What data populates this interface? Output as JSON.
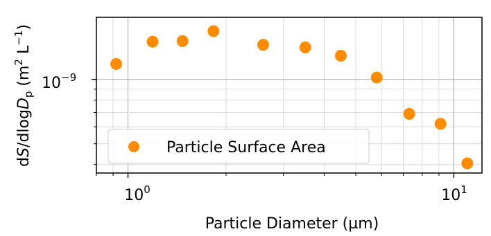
{
  "chart_data": {
    "type": "scatter",
    "xscale": "log",
    "yscale": "log",
    "xlim": [
      0.8,
      12.2
    ],
    "ylim": [
      3.65e-10,
      1.95e-09
    ],
    "grid": "on (major and minor)",
    "legend_position": "lower-left",
    "color": "#ff8c00",
    "xlabel": "Particle Diameter (µm)",
    "ylabel": "dS/dlogD_p (m² L⁻¹)",
    "ylabel_parts": {
      "d": "d",
      "S": "S",
      "slash_dlog": "/dlog",
      "D": "D",
      "p": "p",
      "unit_open": " (m",
      "unit_sq": "2",
      "unit_L": " L",
      "unit_exp": "−1",
      "unit_close": ")"
    },
    "x_ticks": [
      {
        "value": 1,
        "base": "10",
        "exp": "0"
      },
      {
        "value": 10,
        "base": "10",
        "exp": "1"
      }
    ],
    "y_ticks": [
      {
        "value": 1e-09,
        "base": "10",
        "exp": "−9"
      }
    ],
    "series": [
      {
        "name": "Particle Surface Area",
        "points": [
          {
            "x": 0.92,
            "y": 1.18e-09
          },
          {
            "x": 1.19,
            "y": 1.5e-09
          },
          {
            "x": 1.47,
            "y": 1.51e-09
          },
          {
            "x": 1.83,
            "y": 1.68e-09
          },
          {
            "x": 2.6,
            "y": 1.45e-09
          },
          {
            "x": 3.5,
            "y": 1.41e-09
          },
          {
            "x": 4.5,
            "y": 1.29e-09
          },
          {
            "x": 5.8,
            "y": 1.02e-09
          },
          {
            "x": 7.3,
            "y": 6.9e-10
          },
          {
            "x": 9.1,
            "y": 6.2e-10
          },
          {
            "x": 11.0,
            "y": 4.05e-10
          }
        ]
      }
    ]
  }
}
